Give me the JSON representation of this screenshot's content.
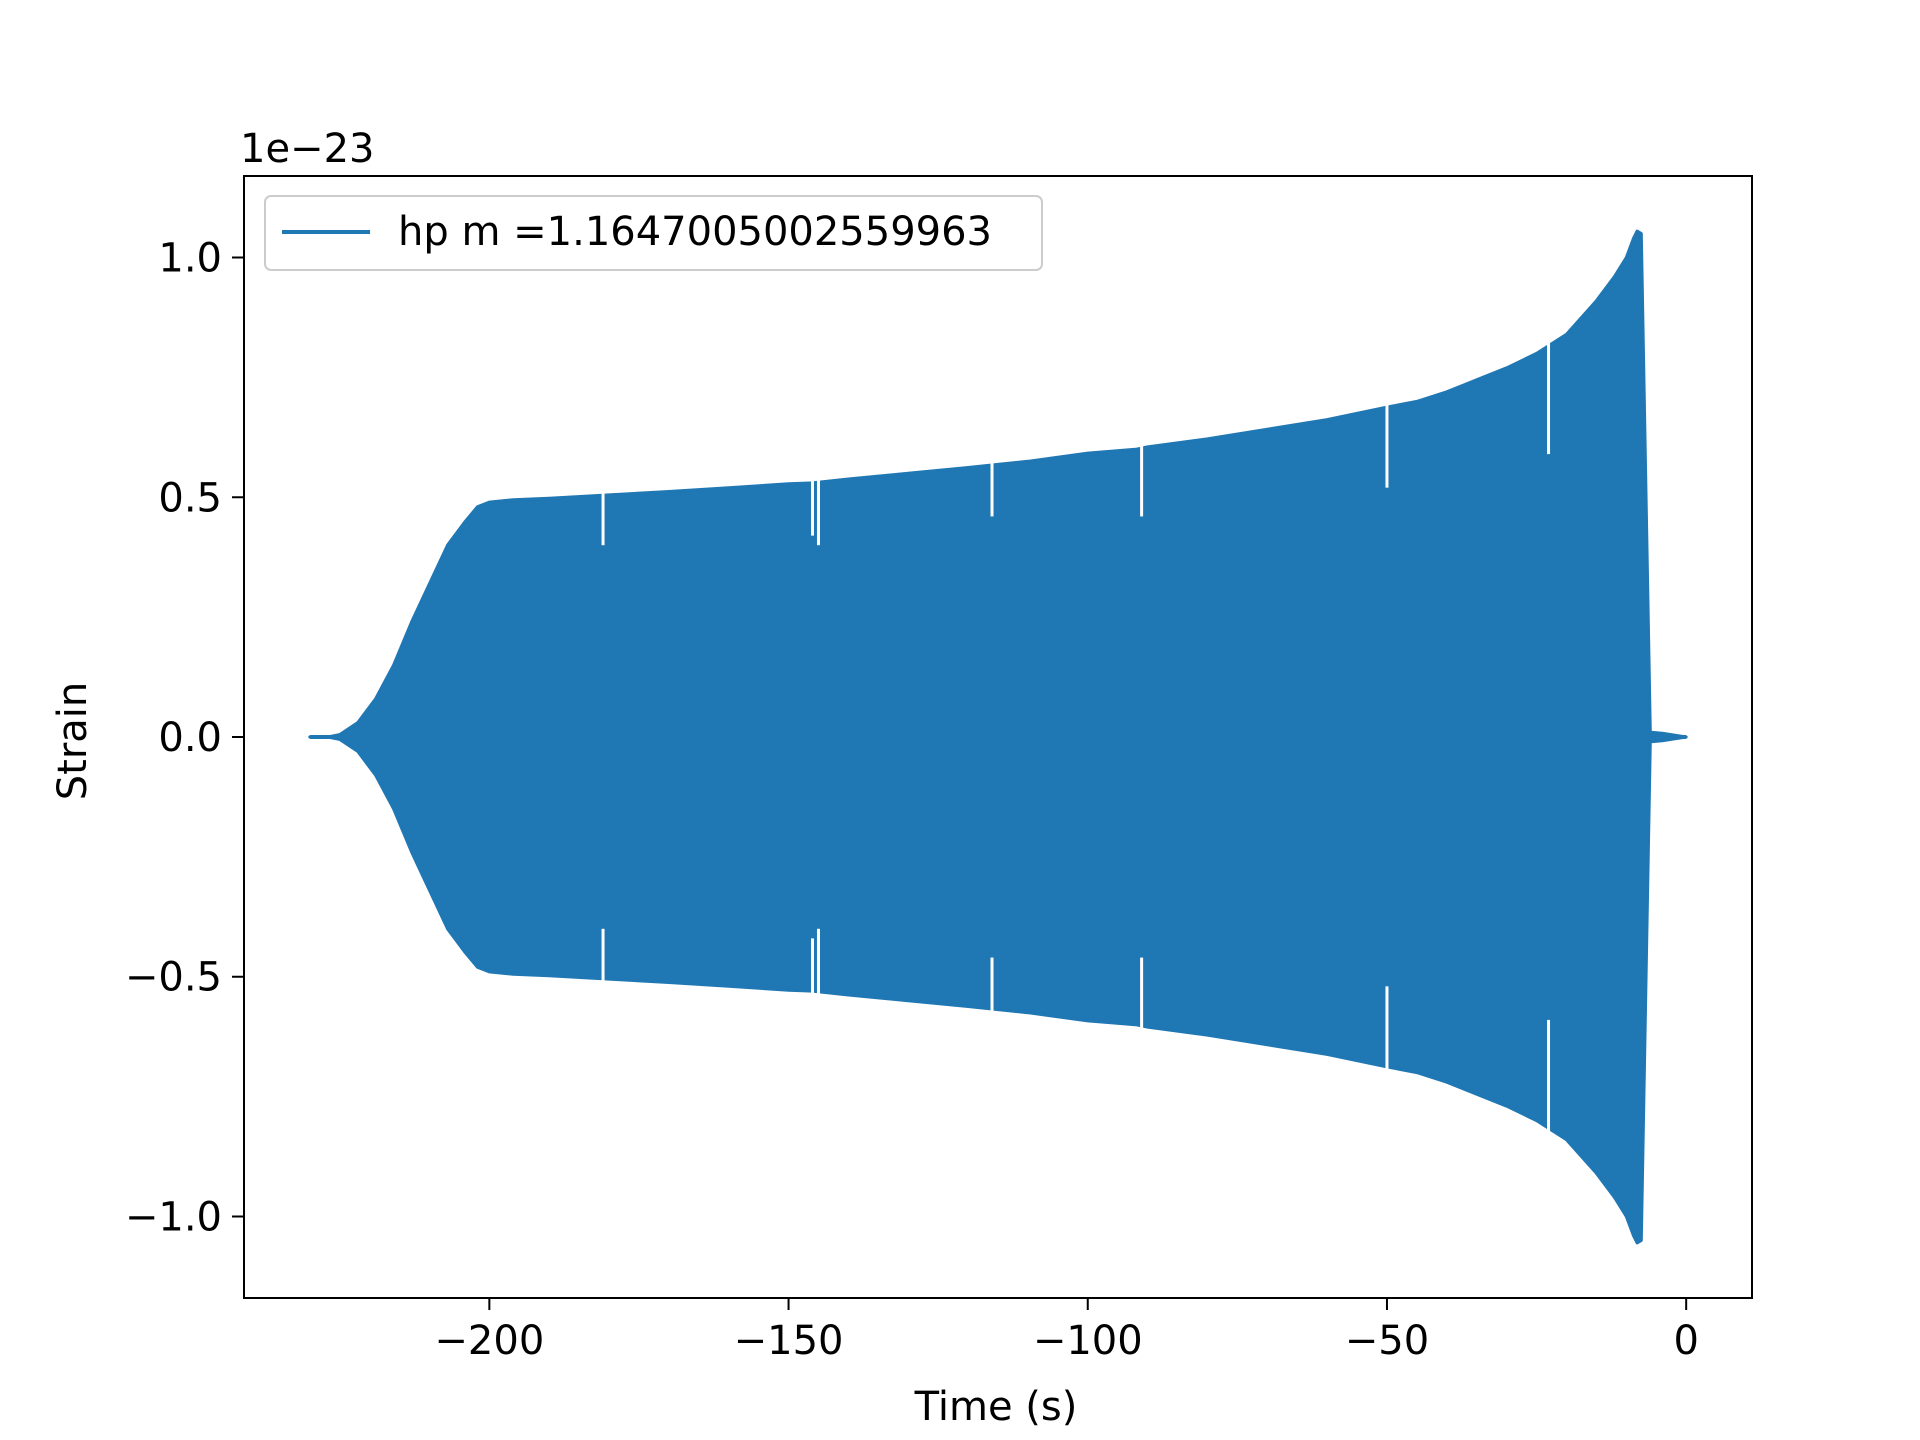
{
  "chart_data": {
    "type": "line",
    "title": "",
    "xlabel": "Time (s)",
    "ylabel": "Strain",
    "y_offset_label": "1e−23",
    "xlim": [
      -241,
      11
    ],
    "ylim": [
      -1.17,
      1.17
    ],
    "xticks": [
      -200,
      -150,
      -100,
      -50,
      0
    ],
    "xtick_labels": [
      "−200",
      "−150",
      "−100",
      "−50",
      "0"
    ],
    "yticks": [
      1.0,
      0.5,
      0.0,
      -0.5,
      -1.0
    ],
    "ytick_labels": [
      "1.0",
      "0.5",
      "0.0",
      "−0.5",
      "−1.0"
    ],
    "grid": false,
    "legend_position": "upper-left",
    "series": [
      {
        "name": "hp m =1.1647005002559963",
        "color": "#1f77b4",
        "style": "dense-oscillation",
        "envelope_upper": {
          "x": [
            -230,
            -227,
            -225,
            -222,
            -219,
            -216,
            -213,
            -210,
            -207,
            -204,
            -202,
            -200,
            -196,
            -190,
            -180,
            -170,
            -160,
            -150,
            -146,
            -140,
            -130,
            -120,
            -110,
            -100,
            -92,
            -90,
            -80,
            -70,
            -60,
            -50,
            -45,
            -40,
            -35,
            -30,
            -25,
            -20,
            -15,
            -12,
            -10,
            -8.8,
            -8.2,
            -7.5,
            -6,
            -4,
            -2,
            0
          ],
          "y": [
            0.0,
            0.0,
            0.005,
            0.03,
            0.08,
            0.15,
            0.24,
            0.32,
            0.4,
            0.45,
            0.48,
            0.49,
            0.495,
            0.498,
            0.505,
            0.512,
            0.52,
            0.528,
            0.53,
            0.538,
            0.55,
            0.562,
            0.575,
            0.592,
            0.6,
            0.605,
            0.622,
            0.642,
            0.662,
            0.688,
            0.7,
            0.72,
            0.745,
            0.77,
            0.8,
            0.84,
            0.91,
            0.96,
            1.0,
            1.04,
            1.055,
            1.05,
            0.01,
            0.008,
            0.004,
            0.0
          ]
        },
        "envelope_lower": {
          "x": [
            -230,
            -227,
            -225,
            -222,
            -219,
            -216,
            -213,
            -210,
            -207,
            -204,
            -202,
            -200,
            -196,
            -190,
            -180,
            -170,
            -160,
            -150,
            -146,
            -140,
            -130,
            -120,
            -110,
            -100,
            -92,
            -90,
            -80,
            -70,
            -60,
            -50,
            -45,
            -40,
            -35,
            -30,
            -25,
            -20,
            -15,
            -12,
            -10,
            -8.8,
            -8.2,
            -7.5,
            -6,
            -4,
            -2,
            0
          ],
          "y": [
            0.0,
            0.0,
            -0.005,
            -0.03,
            -0.08,
            -0.15,
            -0.24,
            -0.32,
            -0.4,
            -0.45,
            -0.48,
            -0.49,
            -0.495,
            -0.498,
            -0.505,
            -0.512,
            -0.52,
            -0.528,
            -0.53,
            -0.538,
            -0.55,
            -0.562,
            -0.575,
            -0.592,
            -0.6,
            -0.605,
            -0.622,
            -0.642,
            -0.662,
            -0.688,
            -0.7,
            -0.72,
            -0.745,
            -0.77,
            -0.8,
            -0.84,
            -0.91,
            -0.96,
            -1.0,
            -1.04,
            -1.055,
            -1.05,
            -0.01,
            -0.008,
            -0.004,
            0.0
          ]
        },
        "dropouts": [
          {
            "x": -181,
            "y": 0.48
          },
          {
            "x": -146,
            "y": 0.5
          },
          {
            "x": -145,
            "y": 0.48
          },
          {
            "x": -116,
            "y": 0.54
          },
          {
            "x": -91,
            "y": 0.54
          },
          {
            "x": -50,
            "y": 0.6
          },
          {
            "x": -23,
            "y": 0.67
          }
        ]
      }
    ]
  }
}
